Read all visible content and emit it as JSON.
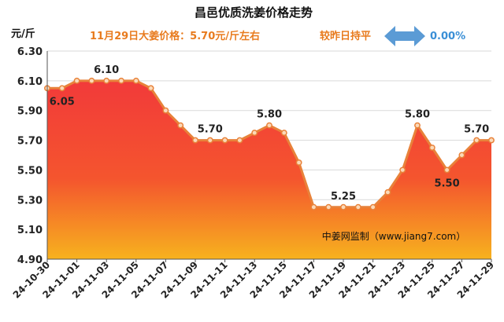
{
  "header": {
    "title": "昌邑优质洗姜价格走势",
    "price_note": "11月29日大姜价格：5.70元/斤左右",
    "compare_label": "较昨日持平",
    "change_value": "0.00%"
  },
  "colors": {
    "line": "#e8823a",
    "area_top": "#f23a3a",
    "area_bottom": "#f7b21e",
    "accent": "#e87b1e",
    "arrow": "#5b9bd5"
  },
  "source": "中姜网监制（www.jiang7.com）",
  "chart_data": {
    "type": "area",
    "ylabel": "元/斤",
    "ylim": [
      4.9,
      6.3
    ],
    "yticks": [
      "6.30",
      "6.10",
      "5.90",
      "5.70",
      "5.50",
      "5.30",
      "5.10",
      "4.90"
    ],
    "x_tick_labels": [
      "24-10-30",
      "24-11-01",
      "24-11-03",
      "24-11-05",
      "24-11-07",
      "24-11-09",
      "24-11-11",
      "24-11-13",
      "24-11-15",
      "24-11-17",
      "24-11-19",
      "24-11-21",
      "24-11-23",
      "24-11-25",
      "24-11-27",
      "24-11-29"
    ],
    "x": [
      "24-10-30",
      "24-10-31",
      "24-11-01",
      "24-11-02",
      "24-11-03",
      "24-11-04",
      "24-11-05",
      "24-11-06",
      "24-11-07",
      "24-11-08",
      "24-11-09",
      "24-11-10",
      "24-11-11",
      "24-11-12",
      "24-11-13",
      "24-11-14",
      "24-11-15",
      "24-11-16",
      "24-11-17",
      "24-11-18",
      "24-11-19",
      "24-11-20",
      "24-11-21",
      "24-11-22",
      "24-11-23",
      "24-11-24",
      "24-11-25",
      "24-11-26",
      "24-11-27",
      "24-11-28",
      "24-11-29"
    ],
    "values": [
      6.05,
      6.05,
      6.1,
      6.1,
      6.1,
      6.1,
      6.1,
      6.05,
      5.9,
      5.8,
      5.7,
      5.7,
      5.7,
      5.7,
      5.75,
      5.8,
      5.75,
      5.55,
      5.25,
      5.25,
      5.25,
      5.25,
      5.25,
      5.35,
      5.5,
      5.8,
      5.65,
      5.5,
      5.6,
      5.7,
      5.7
    ],
    "data_labels": [
      {
        "index": 1,
        "text": "6.05",
        "pos": "below"
      },
      {
        "index": 4,
        "text": "6.10",
        "pos": "above"
      },
      {
        "index": 11,
        "text": "5.70",
        "pos": "above"
      },
      {
        "index": 15,
        "text": "5.80",
        "pos": "above"
      },
      {
        "index": 20,
        "text": "5.25",
        "pos": "above"
      },
      {
        "index": 25,
        "text": "5.80",
        "pos": "above"
      },
      {
        "index": 27,
        "text": "5.50",
        "pos": "below"
      },
      {
        "index": 29,
        "text": "5.70",
        "pos": "above"
      }
    ],
    "grid": true
  }
}
